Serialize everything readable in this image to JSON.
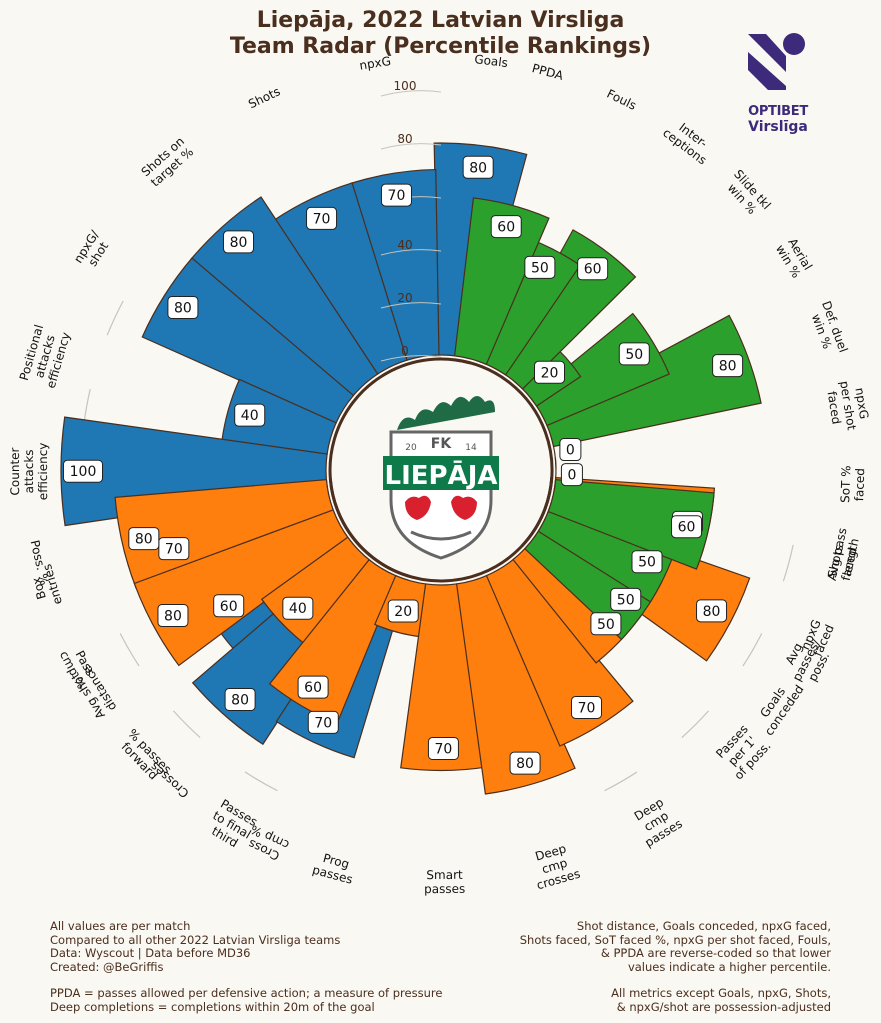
{
  "title": {
    "line1": "Liepāja, 2022 Latvian Virsliga",
    "line2": "Team Radar (Percentile Rankings)"
  },
  "league_logo": {
    "line1": "OPTIBET",
    "line2": "Virslīga",
    "color": "#3d2a7a"
  },
  "team_badge": {
    "top_text": "FK",
    "year_left": "20",
    "year_right": "14",
    "name": "LIEPĀJA"
  },
  "colors": {
    "background": "#faf8f2",
    "attack": "#1f77b4",
    "defense": "#2ca02c",
    "possession": "#ff7f0e",
    "outline": "#4a2e1e",
    "text": "#4a2e1e"
  },
  "chart_data": {
    "type": "bar",
    "subtype": "polar radar",
    "rlim": [
      0,
      100
    ],
    "radial_ticks": [
      "0",
      "20",
      "40",
      "60",
      "80",
      "100"
    ],
    "series": [
      {
        "group": "attack",
        "categories": [
          "Goals",
          "npxG",
          "Shots",
          "Shots on\ntarget %",
          "npxG/\nshot",
          "Positional\nattacks\nefficiency",
          "Counter\nattacks\nefficiency",
          "Box\nentries",
          "Avg shot\ndistance",
          "Crosses",
          "Cross\ncmp %"
        ],
        "values": [
          80,
          70,
          70,
          80,
          80,
          40,
          100,
          70,
          60,
          80,
          70
        ]
      },
      {
        "group": "possession",
        "categories": [
          "Poss. %",
          "Pass\ncmp %",
          "% passes\nforward",
          "Passes\nto final\nthird",
          "Prog\npasses",
          "Smart\npasses",
          "Deep\ncmp\ncrosses",
          "Deep\ncmp\npasses",
          "Passes\nper 1'\nof poss.",
          "Avg\npasses/\nposs.",
          "Avg pass\nlength"
        ],
        "values": [
          80,
          80,
          40,
          60,
          20,
          70,
          80,
          70,
          50,
          80,
          60
        ]
      },
      {
        "group": "defense",
        "categories": [
          "Goals\nconceded",
          "npxG\nfaced",
          "Shots\nfaced",
          "SoT %\nfaced",
          "npxG\nper shot\nfaced",
          "Def. duel\nwin %",
          "Aerial\nwin %",
          "Slide tkl\nwin %",
          "Inter-\nceptions",
          "Fouls",
          "PPDA"
        ],
        "values": [
          50,
          50,
          60,
          0,
          0,
          80,
          50,
          20,
          60,
          50,
          60
        ]
      }
    ]
  },
  "footnotes": {
    "left": "All values are per match\nCompared to all other 2022 Latvian Virsliga teams\nData: Wyscout | Data before MD36\nCreated: @BeGriffis",
    "left2": "PPDA = passes allowed per defensive action; a measure of pressure\nDeep completions = completions within 20m of the goal",
    "right": "Shot distance, Goals conceded, npxG faced,\nShots faced, SoT faced %, npxG per shot faced, Fouls,\n& PPDA are reverse-coded so that lower\nvalues indicate a higher percentile.",
    "right2": "All metrics except Goals, npxG, Shots,\n& npxG/shot are possession-adjusted"
  }
}
